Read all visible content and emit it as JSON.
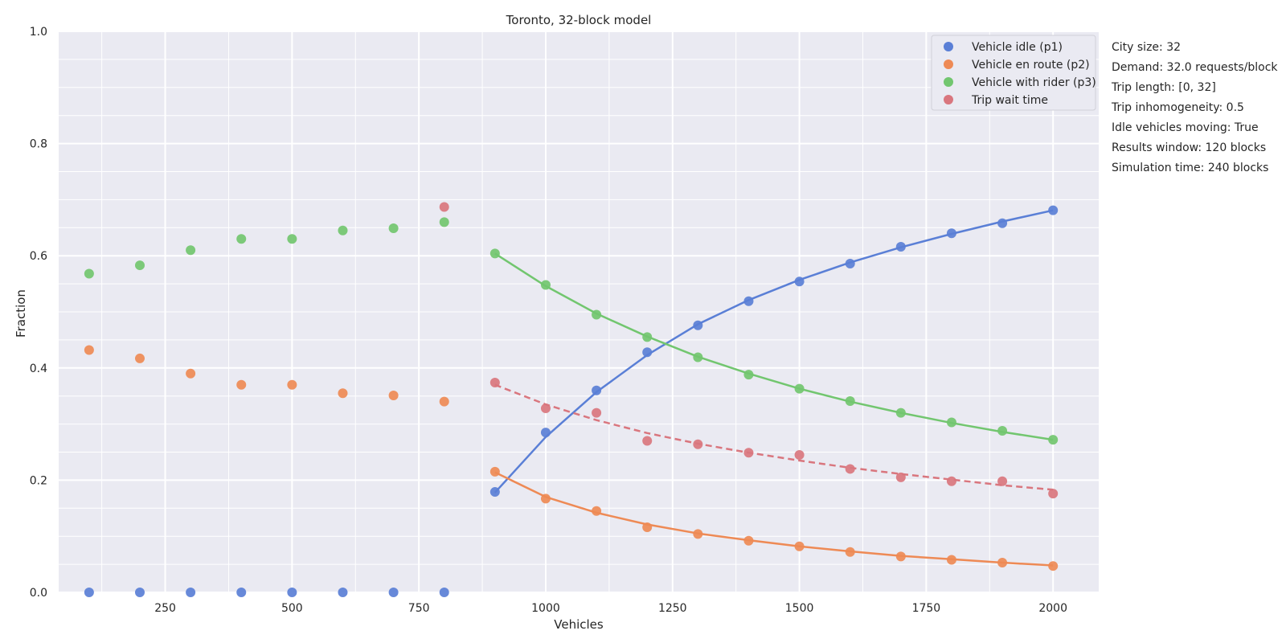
{
  "chart_data": {
    "type": "scatter",
    "title": "Toronto, 32-block model",
    "xlabel": "Vehicles",
    "ylabel": "Fraction",
    "xlim": [
      40,
      2090
    ],
    "ylim": [
      0,
      1.0
    ],
    "x_ticks": [
      250,
      500,
      750,
      1000,
      1250,
      1500,
      1750,
      2000
    ],
    "y_ticks": [
      0.0,
      0.2,
      0.4,
      0.6,
      0.8,
      1.0
    ],
    "y_tick_labels": [
      "0.0",
      "0.2",
      "0.4",
      "0.6",
      "0.8",
      "1.0"
    ],
    "grid": true,
    "legend_position": "top-right",
    "series": [
      {
        "name": "Vehicle idle (p1)",
        "color": "#5a7fd6",
        "x": [
          100,
          200,
          300,
          400,
          500,
          600,
          700,
          800,
          900,
          1000,
          1100,
          1200,
          1300,
          1400,
          1500,
          1600,
          1700,
          1800,
          1900,
          2000
        ],
        "y": [
          0.0,
          0.0,
          0.0,
          0.0,
          0.0,
          0.0,
          0.0,
          0.0,
          0.179,
          0.285,
          0.36,
          0.428,
          0.476,
          0.519,
          0.554,
          0.586,
          0.616,
          0.64,
          0.658,
          0.681
        ],
        "fit_x": [
          900,
          1000,
          1100,
          1200,
          1300,
          1400,
          1500,
          1600,
          1700,
          1800,
          1900,
          2000
        ],
        "fit_y": [
          0.178,
          0.277,
          0.357,
          0.423,
          0.478,
          0.521,
          0.557,
          0.588,
          0.615,
          0.639,
          0.661,
          0.681
        ],
        "fit_dash": false
      },
      {
        "name": "Vehicle en route (p2)",
        "color": "#ee8a55",
        "x": [
          100,
          200,
          300,
          400,
          500,
          600,
          700,
          800,
          900,
          1000,
          1100,
          1200,
          1300,
          1400,
          1500,
          1600,
          1700,
          1800,
          1900,
          2000
        ],
        "y": [
          0.432,
          0.417,
          0.39,
          0.37,
          0.37,
          0.355,
          0.351,
          0.34,
          0.215,
          0.167,
          0.145,
          0.116,
          0.104,
          0.092,
          0.082,
          0.072,
          0.064,
          0.058,
          0.053,
          0.047
        ],
        "fit_x": [
          900,
          1000,
          1100,
          1200,
          1300,
          1400,
          1500,
          1600,
          1700,
          1800,
          1900,
          2000
        ],
        "fit_y": [
          0.214,
          0.17,
          0.142,
          0.121,
          0.105,
          0.093,
          0.082,
          0.073,
          0.065,
          0.059,
          0.053,
          0.048
        ],
        "fit_dash": false
      },
      {
        "name": "Vehicle with rider (p3)",
        "color": "#72c66f",
        "x": [
          100,
          200,
          300,
          400,
          500,
          600,
          700,
          800,
          900,
          1000,
          1100,
          1200,
          1300,
          1400,
          1500,
          1600,
          1700,
          1800,
          1900,
          2000
        ],
        "y": [
          0.568,
          0.583,
          0.61,
          0.63,
          0.63,
          0.645,
          0.649,
          0.66,
          0.604,
          0.548,
          0.495,
          0.455,
          0.419,
          0.388,
          0.363,
          0.341,
          0.32,
          0.303,
          0.288,
          0.272
        ],
        "fit_x": [
          900,
          1000,
          1100,
          1200,
          1300,
          1400,
          1500,
          1600,
          1700,
          1800,
          1900,
          2000
        ],
        "fit_y": [
          0.604,
          0.546,
          0.497,
          0.456,
          0.42,
          0.39,
          0.363,
          0.34,
          0.32,
          0.302,
          0.286,
          0.272
        ],
        "fit_dash": false
      },
      {
        "name": "Trip wait time",
        "color": "#d9767e",
        "x": [
          800,
          900,
          1000,
          1100,
          1200,
          1300,
          1400,
          1500,
          1600,
          1700,
          1800,
          1900,
          2000
        ],
        "y": [
          0.687,
          0.374,
          0.328,
          0.32,
          0.27,
          0.264,
          0.249,
          0.245,
          0.22,
          0.205,
          0.198,
          0.198,
          0.176
        ],
        "fit_x": [
          900,
          1000,
          1100,
          1200,
          1300,
          1400,
          1500,
          1600,
          1700,
          1800,
          1900,
          2000
        ],
        "fit_y": [
          0.37,
          0.335,
          0.307,
          0.284,
          0.265,
          0.249,
          0.235,
          0.222,
          0.211,
          0.201,
          0.191,
          0.183
        ],
        "fit_dash": true
      }
    ],
    "annotations": [
      "City size: 32",
      "Demand: 32.0 requests/block",
      "Trip length: [0, 32]",
      "Trip inhomogeneity: 0.5",
      "Idle vehicles moving: True",
      "Results window: 120 blocks",
      "Simulation time: 240 blocks"
    ],
    "colors": {
      "plot_background": "#eaeaf2",
      "grid": "#ffffff"
    }
  }
}
